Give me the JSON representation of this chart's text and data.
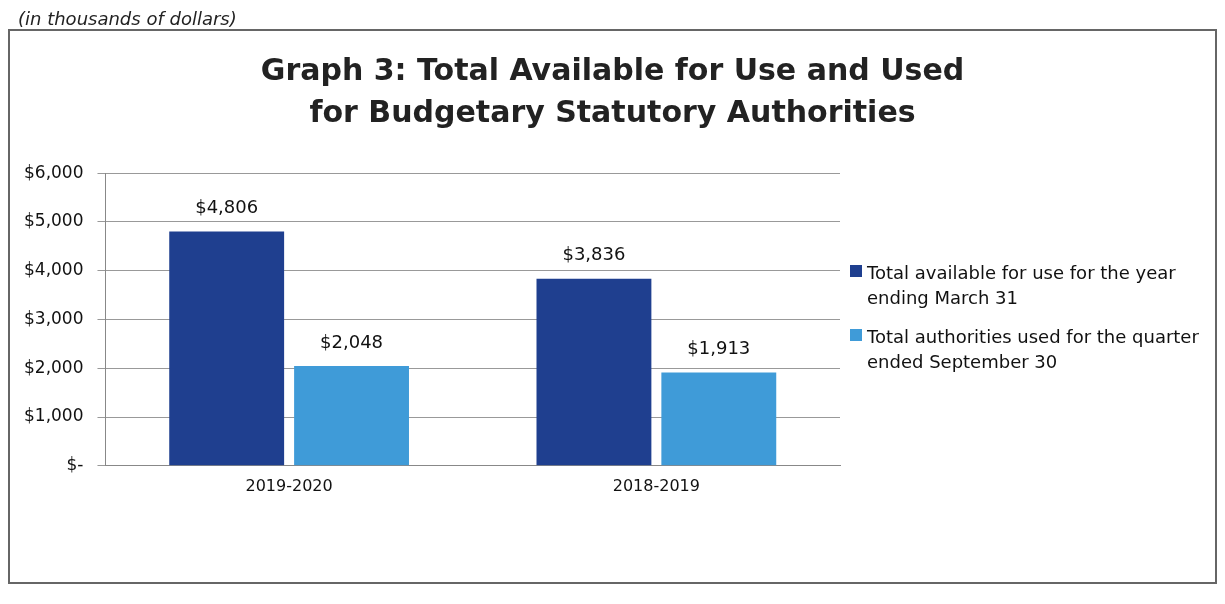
{
  "chart_data": {
    "type": "bar",
    "title": "Graph 3: Total Available for Use and Used for Budgetary Statutory Authorities",
    "annotations": [
      "(in thousands of dollars)"
    ],
    "categories": [
      "2019-2020",
      "2018-2019"
    ],
    "series": [
      {
        "name": "Total available for use for the year ending March 31",
        "color": "#1f3f8f",
        "values": [
          4806,
          3836
        ],
        "value_labels": [
          "$4,806",
          "$3,836"
        ]
      },
      {
        "name": "Total authorities used for the quarter ended September 30",
        "color": "#3f9bd8",
        "values": [
          2048,
          1913
        ],
        "value_labels": [
          "$2,048",
          "$1,913"
        ]
      }
    ],
    "ylim": [
      0,
      6000
    ],
    "yticks": [
      {
        "value": 0,
        "label": "$-"
      },
      {
        "value": 1000,
        "label": "$1,000"
      },
      {
        "value": 2000,
        "label": "$2,000"
      },
      {
        "value": 3000,
        "label": "$3,000"
      },
      {
        "value": 4000,
        "label": "$4,000"
      },
      {
        "value": 5000,
        "label": "$5,000"
      },
      {
        "value": 6000,
        "label": "$6,000"
      }
    ],
    "grid": "y",
    "legend": "right"
  }
}
